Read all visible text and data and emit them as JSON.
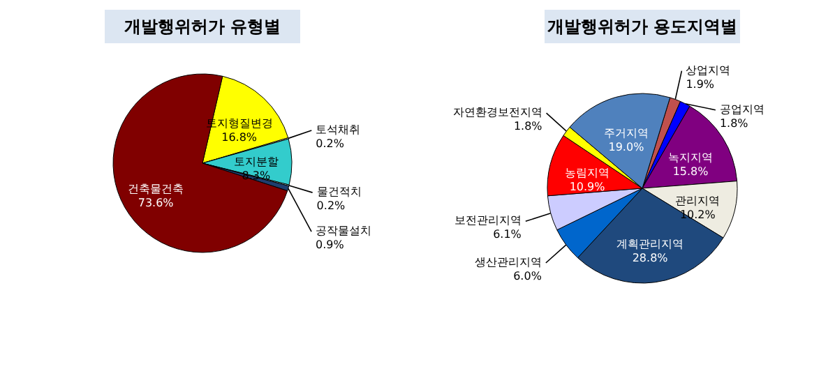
{
  "chart_data": [
    {
      "type": "pie",
      "title": "개발행위허가  유형별",
      "categories": [
        "토지형질변경",
        "토석채취",
        "토지분할",
        "물건적치",
        "공작물설치",
        "건축물건축"
      ],
      "values": [
        16.8,
        0.2,
        8.3,
        0.2,
        0.9,
        73.6
      ],
      "value_labels": [
        "16.8%",
        "0.2%",
        "8.3%",
        "0.2%",
        "0.9%",
        "73.6%"
      ],
      "colors": [
        "#ffff00",
        "#ffffcc",
        "#33cccc",
        "#ccffff",
        "#1f3f6f",
        "#800000"
      ],
      "legend": false
    },
    {
      "type": "pie",
      "title": "개발행위허가  용도지역별",
      "categories": [
        "상업지역",
        "공업지역",
        "녹지지역",
        "관리지역",
        "계획관리지역",
        "생산관리지역",
        "보전관리지역",
        "농림지역",
        "자연환경보전지역",
        "주거지역"
      ],
      "values": [
        1.9,
        1.8,
        15.8,
        10.2,
        28.8,
        6.0,
        6.1,
        10.9,
        1.8,
        19.0
      ],
      "value_labels": [
        "1.9%",
        "1.8%",
        "15.8%",
        "10.2%",
        "28.8%",
        "6.0%",
        "6.1%",
        "10.9%",
        "1.8%",
        "19.0%"
      ],
      "colors": [
        "#c0504d",
        "#0000ff",
        "#800080",
        "#eeece1",
        "#1f497d",
        "#0066cc",
        "#ccccff",
        "#ff0000",
        "#ffff00",
        "#4f81bd"
      ],
      "legend": false
    }
  ]
}
